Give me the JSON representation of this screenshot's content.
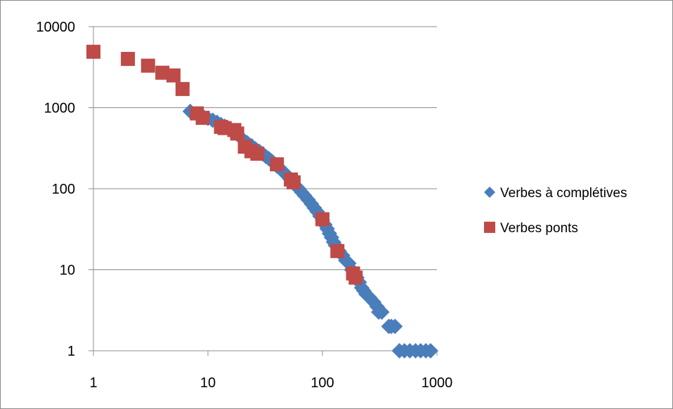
{
  "chart_data": {
    "type": "scatter",
    "title": "",
    "xlabel": "",
    "ylabel": "",
    "xscale": "log",
    "yscale": "log",
    "xlim": [
      1,
      1000
    ],
    "ylim": [
      1,
      10000
    ],
    "x_ticks": [
      "1",
      "10",
      "100",
      "1000"
    ],
    "y_ticks": [
      "1",
      "10",
      "100",
      "1000",
      "10000"
    ],
    "grid": "horizontal",
    "legend_position": "right",
    "series": [
      {
        "name": "Verbes à complétives",
        "marker": "diamond",
        "color": "#4A7EBB",
        "points": [
          [
            7,
            900
          ],
          [
            8,
            840
          ],
          [
            9,
            790
          ],
          [
            10,
            740
          ],
          [
            11,
            700
          ],
          [
            12,
            660
          ],
          [
            13,
            620
          ],
          [
            14,
            590
          ],
          [
            15,
            560
          ],
          [
            16,
            530
          ],
          [
            17,
            500
          ],
          [
            18,
            470
          ],
          [
            19,
            440
          ],
          [
            20,
            410
          ],
          [
            22,
            370
          ],
          [
            24,
            340
          ],
          [
            26,
            310
          ],
          [
            28,
            290
          ],
          [
            30,
            270
          ],
          [
            32,
            250
          ],
          [
            34,
            235
          ],
          [
            36,
            220
          ],
          [
            38,
            205
          ],
          [
            40,
            190
          ],
          [
            43,
            175
          ],
          [
            46,
            160
          ],
          [
            49,
            145
          ],
          [
            52,
            132
          ],
          [
            55,
            120
          ],
          [
            58,
            110
          ],
          [
            62,
            100
          ],
          [
            66,
            90
          ],
          [
            70,
            82
          ],
          [
            75,
            73
          ],
          [
            80,
            65
          ],
          [
            85,
            58
          ],
          [
            90,
            52
          ],
          [
            95,
            46
          ],
          [
            100,
            41
          ],
          [
            105,
            36
          ],
          [
            110,
            32
          ],
          [
            115,
            28
          ],
          [
            120,
            25
          ],
          [
            125,
            22
          ],
          [
            130,
            20
          ],
          [
            140,
            17
          ],
          [
            150,
            15
          ],
          [
            160,
            13
          ],
          [
            170,
            12
          ],
          [
            180,
            10
          ],
          [
            190,
            9
          ],
          [
            200,
            8
          ],
          [
            210,
            7
          ],
          [
            220,
            6
          ],
          [
            230,
            5.5
          ],
          [
            240,
            5
          ],
          [
            260,
            4.5
          ],
          [
            280,
            4
          ],
          [
            300,
            3.5
          ],
          [
            310,
            3
          ],
          [
            330,
            3
          ],
          [
            380,
            2
          ],
          [
            400,
            2
          ],
          [
            430,
            2
          ],
          [
            470,
            1
          ],
          [
            520,
            1
          ],
          [
            580,
            1
          ],
          [
            650,
            1
          ],
          [
            720,
            1
          ],
          [
            800,
            1
          ],
          [
            880,
            1
          ]
        ]
      },
      {
        "name": "Verbes ponts",
        "marker": "square",
        "color": "#BE4B48",
        "points": [
          [
            1,
            4900
          ],
          [
            2,
            4000
          ],
          [
            3,
            3300
          ],
          [
            4,
            2700
          ],
          [
            5,
            2500
          ],
          [
            6,
            1700
          ],
          [
            8,
            850
          ],
          [
            9,
            750
          ],
          [
            13,
            580
          ],
          [
            14,
            560
          ],
          [
            17,
            530
          ],
          [
            18,
            480
          ],
          [
            21,
            330
          ],
          [
            24,
            290
          ],
          [
            27,
            270
          ],
          [
            40,
            200
          ],
          [
            53,
            130
          ],
          [
            56,
            120
          ],
          [
            100,
            42
          ],
          [
            135,
            17
          ],
          [
            185,
            9
          ],
          [
            195,
            8
          ]
        ]
      }
    ]
  }
}
